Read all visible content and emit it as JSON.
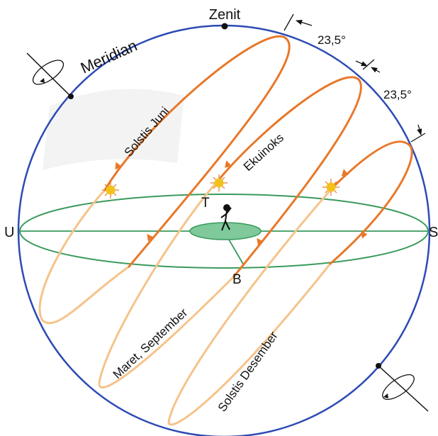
{
  "labels": {
    "zenit": "Zenit",
    "meridian": "Meridian",
    "angle_top": "23,5°",
    "angle_bottom": "23,5°",
    "solstis_juni": "Solstis Juni",
    "ekuinoks": "Ekuinoks",
    "maret_september": "Maret, September",
    "solstis_desember": "Solstis Desember",
    "u": "U",
    "s": "S",
    "t": "T",
    "b": "B"
  },
  "colors": {
    "sphere": "#2d4bb4",
    "horizon": "#3a9a5c",
    "observer_disk": "#7fc99a",
    "path_above": "#e8782a",
    "path_below": "#f5c38a",
    "sun": "#f2c21b",
    "sun_rays": "#e8782a"
  },
  "icons": [
    "sun-icon",
    "observer-icon",
    "rotation-arrow-icon"
  ]
}
